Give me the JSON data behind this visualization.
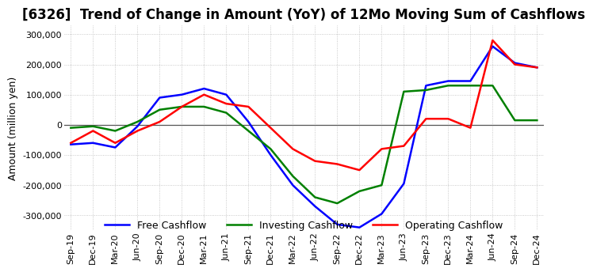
{
  "title": "[6326]  Trend of Change in Amount (YoY) of 12Mo Moving Sum of Cashflows",
  "ylabel": "Amount (million yen)",
  "x_labels": [
    "Sep-19",
    "Dec-19",
    "Mar-20",
    "Jun-20",
    "Sep-20",
    "Dec-20",
    "Mar-21",
    "Jun-21",
    "Sep-21",
    "Dec-21",
    "Mar-22",
    "Jun-22",
    "Sep-22",
    "Dec-22",
    "Mar-23",
    "Jun-23",
    "Sep-23",
    "Dec-23",
    "Mar-24",
    "Jun-24",
    "Sep-24",
    "Dec-24"
  ],
  "operating": [
    -60000,
    -20000,
    -60000,
    -20000,
    10000,
    60000,
    100000,
    70000,
    60000,
    -10000,
    -80000,
    -120000,
    -130000,
    -150000,
    -80000,
    -70000,
    20000,
    20000,
    -10000,
    280000,
    200000,
    190000
  ],
  "investing": [
    -10000,
    -5000,
    -20000,
    10000,
    50000,
    60000,
    60000,
    40000,
    -20000,
    -80000,
    -170000,
    -240000,
    -260000,
    -220000,
    -200000,
    110000,
    115000,
    130000,
    130000,
    130000,
    15000,
    15000
  ],
  "free": [
    -65000,
    -60000,
    -75000,
    -5000,
    90000,
    100000,
    120000,
    100000,
    10000,
    -100000,
    -200000,
    -270000,
    -330000,
    -340000,
    -295000,
    -195000,
    130000,
    145000,
    145000,
    260000,
    205000,
    190000
  ],
  "ylim": [
    -350000,
    330000
  ],
  "yticks": [
    -300000,
    -200000,
    -100000,
    0,
    100000,
    200000,
    300000
  ],
  "legend_labels": [
    "Operating Cashflow",
    "Investing Cashflow",
    "Free Cashflow"
  ],
  "line_colors": [
    "#ff0000",
    "#008000",
    "#0000ff"
  ],
  "background_color": "#ffffff",
  "grid_color": "#bbbbbb",
  "title_fontsize": 12,
  "axis_fontsize": 9,
  "tick_fontsize": 8
}
